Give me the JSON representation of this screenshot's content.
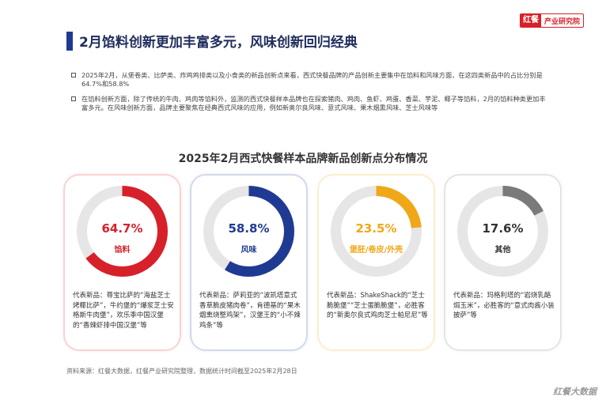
{
  "brand": {
    "mark": "红餐",
    "name": "产业研究院"
  },
  "title": "2月馅料创新更加丰富多元，风味创新回归经典",
  "bullets": [
    "2025年2月，从堡卷类、比萨类、炸鸡鸡排类以及小食类的新品创新点来看，西式快餐品牌的产品创新主要集中在馅料和风味方面，在这四类新品中的占比分别是64.7%和58.8%",
    "在馅料创新方面，除了传统的牛肉、鸡肉等馅料外，监测的西式快餐样本品牌也在探索猪肉、鸡肉、鱼虾、鸡蛋、香菜、芋泥、椰子等馅料，2月的馅料种类更加丰富多元。在风味创新方面，品牌主要聚焦在经典西式风味的应用，例如新奥尔良风味、意式风味、果木烟熏风味、芝士风味等"
  ],
  "chart_title": "2025年2月西式快餐样本品牌新品创新点分布情况",
  "chart_data": {
    "type": "pie",
    "items": [
      {
        "label": "馅料",
        "value_text": "64.7%",
        "value": 64.7,
        "color": "#d6212b",
        "desc": "代表新品：尊宝比萨的“海盐芝士烤椰比萨”，牛约堡的“爆浆芝士安格斯牛肉堡”，欢乐季中国汉堡的“香辣虾排中国汉堡”等"
      },
      {
        "label": "风味",
        "value_text": "58.8%",
        "value": 58.8,
        "color": "#1f3a93",
        "desc": "代表新品：萨莉亚的“波凯塔意式香草脆皮猪肉卷”，肯德基的“果木烟熏烧整鸡架”，汉堡王的“小不辣鸡条”等"
      },
      {
        "label": "堡胚/卷皮/外壳",
        "value_text": "23.5%",
        "value": 23.5,
        "color": "#f0a818",
        "desc": "代表新品：ShakeShack的“芝士脆脆堡”“芝士蛋脆脆堡”，必胜客的“新奥尔良式鸡肉芝士帕尼尼”等"
      },
      {
        "label": "其他",
        "value_text": "17.6%",
        "value": 17.6,
        "color": "#7a7a7a",
        "desc": "代表新品：玛格利塔的“岩烧乳酪焗玉米”，必胜客的“意式肉酱小装披萨”等"
      }
    ]
  },
  "footer": "资料来源：红餐大数据，红餐产业研究院整理，数据统计时间截至2025年2月28日",
  "watermark": "红餐大数据",
  "colors": {
    "track": "#e6e6e6",
    "title": "#1f2d5c"
  }
}
